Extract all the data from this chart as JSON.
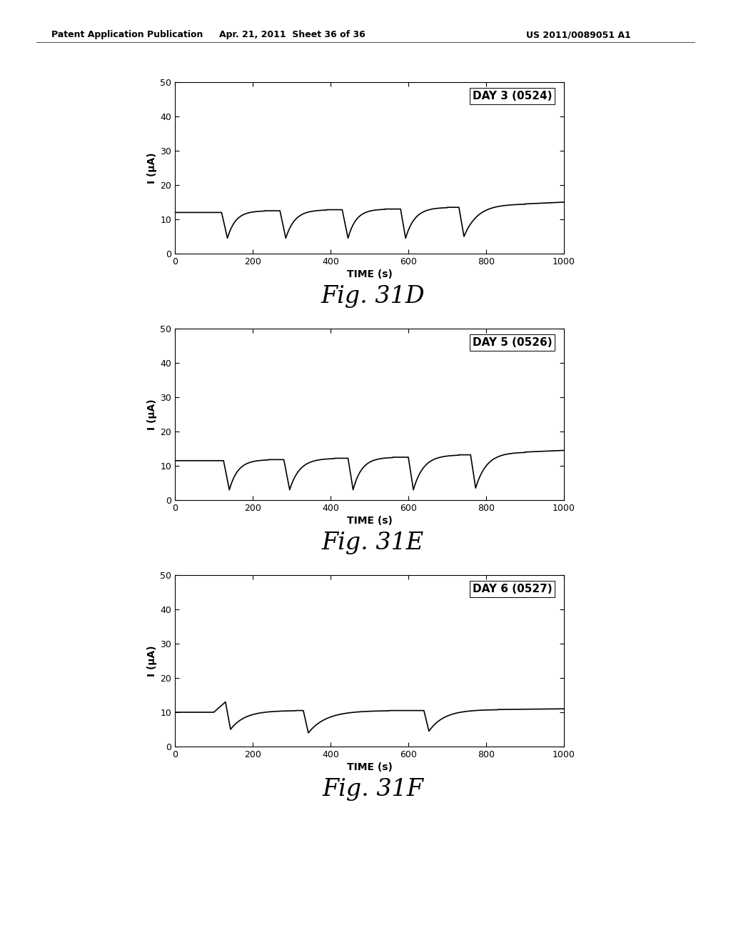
{
  "header_left": "Patent Application Publication",
  "header_mid": "Apr. 21, 2011  Sheet 36 of 36",
  "header_right": "US 2011/0089051 A1",
  "plots": [
    {
      "label": "DAY 3 (0524)",
      "fig_label": "Fig. 31D",
      "segments": [
        {
          "t": [
            0,
            100
          ],
          "y": [
            12.0,
            12.0
          ]
        },
        {
          "t": [
            100,
            120
          ],
          "y": [
            12.0,
            12.0
          ]
        },
        {
          "t": [
            120,
            135
          ],
          "y": [
            12.0,
            4.5
          ]
        },
        {
          "t": [
            135,
            230
          ],
          "y": [
            4.5,
            12.5
          ],
          "exp": true
        },
        {
          "t": [
            230,
            270
          ],
          "y": [
            12.5,
            12.5
          ]
        },
        {
          "t": [
            270,
            285
          ],
          "y": [
            12.5,
            4.5
          ]
        },
        {
          "t": [
            285,
            390
          ],
          "y": [
            4.5,
            12.8
          ],
          "exp": true
        },
        {
          "t": [
            390,
            430
          ],
          "y": [
            12.8,
            12.8
          ]
        },
        {
          "t": [
            430,
            445
          ],
          "y": [
            12.8,
            4.5
          ]
        },
        {
          "t": [
            445,
            540
          ],
          "y": [
            4.5,
            13.0
          ],
          "exp": true
        },
        {
          "t": [
            540,
            580
          ],
          "y": [
            13.0,
            13.0
          ]
        },
        {
          "t": [
            580,
            593
          ],
          "y": [
            13.0,
            4.5
          ]
        },
        {
          "t": [
            593,
            700
          ],
          "y": [
            4.5,
            13.5
          ],
          "exp": true
        },
        {
          "t": [
            700,
            730
          ],
          "y": [
            13.5,
            13.5
          ]
        },
        {
          "t": [
            730,
            743
          ],
          "y": [
            13.5,
            5.0
          ]
        },
        {
          "t": [
            743,
            900
          ],
          "y": [
            5.0,
            14.5
          ],
          "exp": true
        },
        {
          "t": [
            900,
            1000
          ],
          "y": [
            14.5,
            15.0
          ]
        }
      ]
    },
    {
      "label": "DAY 5 (0526)",
      "fig_label": "Fig. 31E",
      "segments": [
        {
          "t": [
            0,
            100
          ],
          "y": [
            11.5,
            11.5
          ]
        },
        {
          "t": [
            100,
            125
          ],
          "y": [
            11.5,
            11.5
          ]
        },
        {
          "t": [
            125,
            140
          ],
          "y": [
            11.5,
            3.0
          ]
        },
        {
          "t": [
            140,
            240
          ],
          "y": [
            3.0,
            11.8
          ],
          "exp": true
        },
        {
          "t": [
            240,
            280
          ],
          "y": [
            11.8,
            11.8
          ]
        },
        {
          "t": [
            280,
            295
          ],
          "y": [
            11.8,
            3.0
          ]
        },
        {
          "t": [
            295,
            410
          ],
          "y": [
            3.0,
            12.2
          ],
          "exp": true
        },
        {
          "t": [
            410,
            445
          ],
          "y": [
            12.2,
            12.2
          ]
        },
        {
          "t": [
            445,
            458
          ],
          "y": [
            12.2,
            3.0
          ]
        },
        {
          "t": [
            458,
            560
          ],
          "y": [
            3.0,
            12.5
          ],
          "exp": true
        },
        {
          "t": [
            560,
            600
          ],
          "y": [
            12.5,
            12.5
          ]
        },
        {
          "t": [
            600,
            613
          ],
          "y": [
            12.5,
            3.0
          ]
        },
        {
          "t": [
            613,
            730
          ],
          "y": [
            3.0,
            13.2
          ],
          "exp": true
        },
        {
          "t": [
            730,
            760
          ],
          "y": [
            13.2,
            13.2
          ]
        },
        {
          "t": [
            760,
            773
          ],
          "y": [
            13.2,
            3.5
          ]
        },
        {
          "t": [
            773,
            900
          ],
          "y": [
            3.5,
            14.0
          ],
          "exp": true
        },
        {
          "t": [
            900,
            1000
          ],
          "y": [
            14.0,
            14.5
          ]
        }
      ]
    },
    {
      "label": "DAY 6 (0527)",
      "fig_label": "Fig. 31F",
      "segments": [
        {
          "t": [
            0,
            100
          ],
          "y": [
            10.0,
            10.0
          ]
        },
        {
          "t": [
            100,
            130
          ],
          "y": [
            10.0,
            13.0
          ]
        },
        {
          "t": [
            130,
            143
          ],
          "y": [
            13.0,
            5.0
          ]
        },
        {
          "t": [
            143,
            310
          ],
          "y": [
            5.0,
            10.5
          ],
          "exp": true
        },
        {
          "t": [
            310,
            330
          ],
          "y": [
            10.5,
            10.5
          ]
        },
        {
          "t": [
            330,
            343
          ],
          "y": [
            10.5,
            4.0
          ]
        },
        {
          "t": [
            343,
            550
          ],
          "y": [
            4.0,
            10.5
          ],
          "exp": true
        },
        {
          "t": [
            550,
            640
          ],
          "y": [
            10.5,
            10.5
          ]
        },
        {
          "t": [
            640,
            653
          ],
          "y": [
            10.5,
            4.5
          ]
        },
        {
          "t": [
            653,
            830
          ],
          "y": [
            4.5,
            10.8
          ],
          "exp": true
        },
        {
          "t": [
            830,
            1000
          ],
          "y": [
            10.8,
            11.0
          ]
        }
      ]
    }
  ],
  "xlim": [
    0,
    1000
  ],
  "ylim": [
    0,
    50
  ],
  "xticks": [
    0,
    200,
    400,
    600,
    800,
    1000
  ],
  "yticks": [
    0,
    10,
    20,
    30,
    40,
    50
  ],
  "xlabel": "TIME (s)",
  "ylabel": "I (μA)",
  "line_color": "#000000",
  "background_color": "#ffffff",
  "fig_label_fontsize": 24,
  "axis_label_fontsize": 10,
  "tick_fontsize": 9,
  "annotation_fontsize": 11
}
